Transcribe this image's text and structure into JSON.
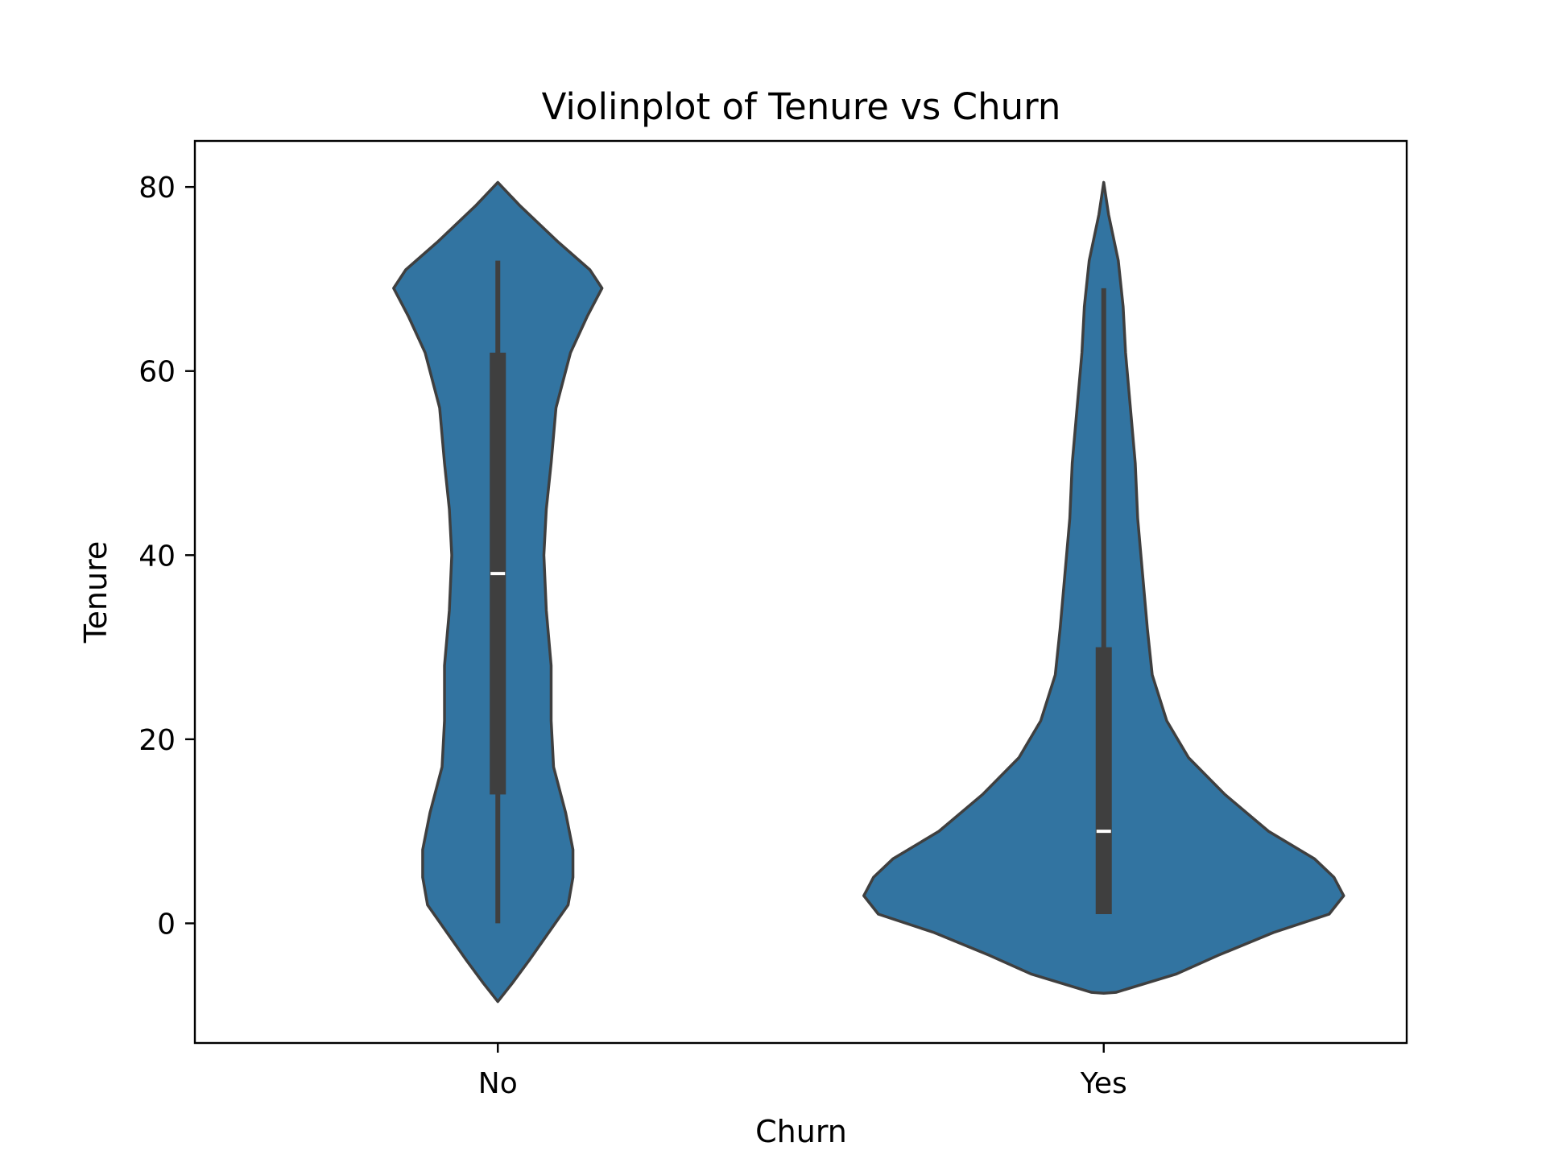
{
  "chart_data": {
    "type": "violin",
    "title": "Violinplot of Tenure vs Churn",
    "xlabel": "Churn",
    "ylabel": "Tenure",
    "categories": [
      "No",
      "Yes"
    ],
    "y_ticks": [
      "0",
      "20",
      "40",
      "60",
      "80"
    ],
    "ylim": [
      -13,
      85
    ],
    "grid": false,
    "colors": {
      "violin_fill": "#3274a1",
      "violin_edge": "#3f3f3f",
      "box": "#3f3f3f",
      "median": "#ffffff",
      "axes": "#000000"
    },
    "series": [
      {
        "category": "No",
        "whisker_low": 0,
        "q1": 14,
        "median": 38,
        "q3": 62,
        "whisker_high": 72,
        "density": [
          [
            80.5,
            0.0
          ],
          [
            78,
            0.09
          ],
          [
            74,
            0.25
          ],
          [
            71,
            0.38
          ],
          [
            69,
            0.43
          ],
          [
            66,
            0.37
          ],
          [
            62,
            0.3
          ],
          [
            56,
            0.24
          ],
          [
            50,
            0.22
          ],
          [
            45,
            0.2
          ],
          [
            40,
            0.19
          ],
          [
            34,
            0.2
          ],
          [
            28,
            0.22
          ],
          [
            22,
            0.22
          ],
          [
            17,
            0.23
          ],
          [
            12,
            0.28
          ],
          [
            8,
            0.31
          ],
          [
            5,
            0.31
          ],
          [
            2,
            0.29
          ],
          [
            -1,
            0.21
          ],
          [
            -4,
            0.13
          ],
          [
            -6.5,
            0.06
          ],
          [
            -8.5,
            0.0
          ]
        ]
      },
      {
        "category": "Yes",
        "whisker_low": 1,
        "q1": 1,
        "median": 10,
        "q3": 30,
        "whisker_high": 69,
        "density": [
          [
            80.5,
            0.0
          ],
          [
            77,
            0.02
          ],
          [
            72,
            0.06
          ],
          [
            67,
            0.08
          ],
          [
            62,
            0.09
          ],
          [
            56,
            0.11
          ],
          [
            50,
            0.13
          ],
          [
            44,
            0.14
          ],
          [
            38,
            0.16
          ],
          [
            32,
            0.18
          ],
          [
            27,
            0.2
          ],
          [
            22,
            0.26
          ],
          [
            18,
            0.35
          ],
          [
            14,
            0.5
          ],
          [
            10,
            0.68
          ],
          [
            7,
            0.87
          ],
          [
            5,
            0.95
          ],
          [
            3,
            0.99
          ],
          [
            1,
            0.93
          ],
          [
            -1,
            0.7
          ],
          [
            -3.5,
            0.47
          ],
          [
            -5.5,
            0.3
          ],
          [
            -7.5,
            0.05
          ],
          [
            -7.6,
            0.0
          ]
        ]
      }
    ]
  }
}
